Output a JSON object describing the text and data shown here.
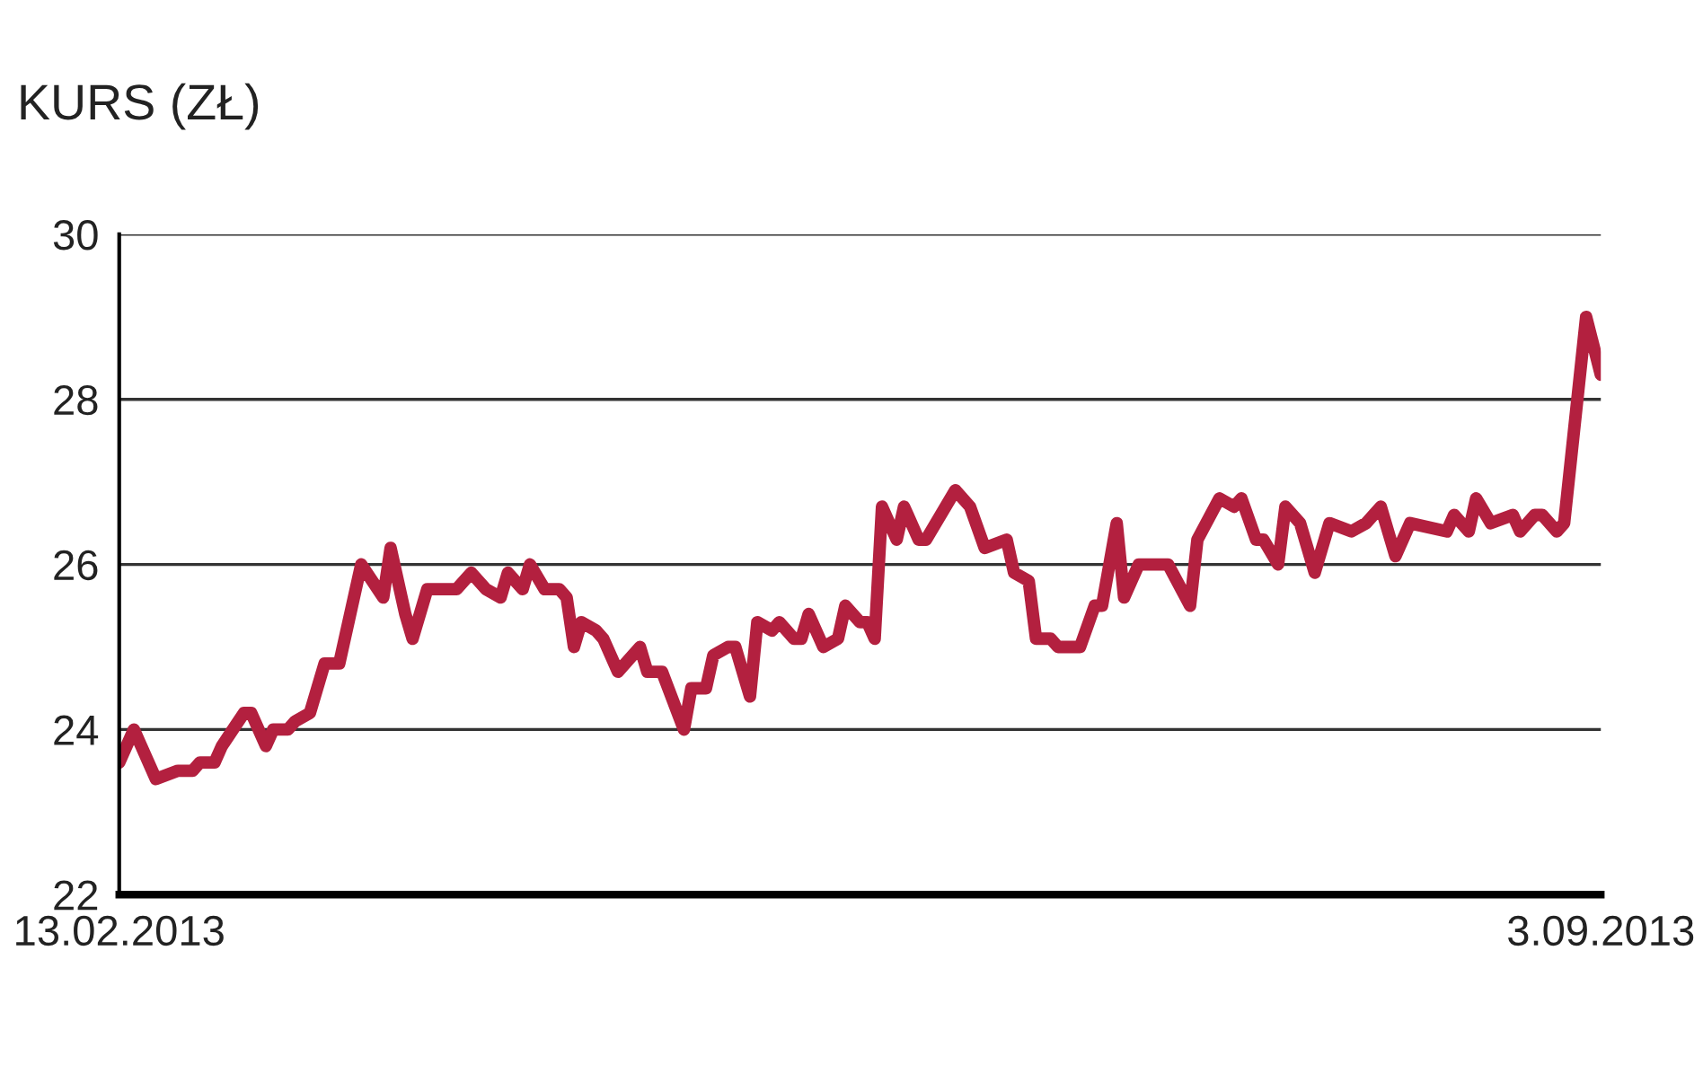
{
  "chart_data": {
    "type": "line",
    "subtitle": "KURS (ZŁ)",
    "x": [
      "2013-02-13",
      "2013-02-15",
      "2013-02-16",
      "2013-02-18",
      "2013-02-21",
      "2013-02-23",
      "2013-02-24",
      "2013-02-26",
      "2013-02-27",
      "2013-03-02",
      "2013-03-03",
      "2013-03-05",
      "2013-03-06",
      "2013-03-08",
      "2013-03-09",
      "2013-03-11",
      "2013-03-13",
      "2013-03-15",
      "2013-03-18",
      "2013-03-21",
      "2013-03-22",
      "2013-03-24",
      "2013-03-25",
      "2013-03-27",
      "2013-03-28",
      "2013-03-31",
      "2013-04-02",
      "2013-04-04",
      "2013-04-06",
      "2013-04-07",
      "2013-04-09",
      "2013-04-10",
      "2013-04-12",
      "2013-04-14",
      "2013-04-15",
      "2013-04-16",
      "2013-04-17",
      "2013-04-19",
      "2013-04-20",
      "2013-04-22",
      "2013-04-25",
      "2013-04-26",
      "2013-04-28",
      "2013-05-01",
      "2013-05-02",
      "2013-05-04",
      "2013-05-05",
      "2013-05-07",
      "2013-05-08",
      "2013-05-10",
      "2013-05-11",
      "2013-05-13",
      "2013-05-14",
      "2013-05-16",
      "2013-05-17",
      "2013-05-18",
      "2013-05-20",
      "2013-05-22",
      "2013-05-23",
      "2013-05-25",
      "2013-05-26",
      "2013-05-27",
      "2013-05-28",
      "2013-05-30",
      "2013-05-31",
      "2013-06-02",
      "2013-06-03",
      "2013-06-07",
      "2013-06-09",
      "2013-06-11",
      "2013-06-14",
      "2013-06-15",
      "2013-06-17",
      "2013-06-18",
      "2013-06-20",
      "2013-06-21",
      "2013-06-24",
      "2013-06-26",
      "2013-06-27",
      "2013-06-29",
      "2013-06-30",
      "2013-07-02",
      "2013-07-06",
      "2013-07-09",
      "2013-07-10",
      "2013-07-13",
      "2013-07-15",
      "2013-07-16",
      "2013-07-18",
      "2013-07-19",
      "2013-07-21",
      "2013-07-22",
      "2013-07-24",
      "2013-07-26",
      "2013-07-28",
      "2013-07-31",
      "2013-08-02",
      "2013-08-04",
      "2013-08-06",
      "2013-08-08",
      "2013-08-13",
      "2013-08-14",
      "2013-08-16",
      "2013-08-17",
      "2013-08-19",
      "2013-08-22",
      "2013-08-23",
      "2013-08-25",
      "2013-08-26",
      "2013-08-28",
      "2013-08-29",
      "2013-09-01",
      "2013-09-03"
    ],
    "series": [
      {
        "color": "#b3203f",
        "values": [
          23.6,
          24.0,
          23.8,
          23.4,
          23.5,
          23.5,
          23.6,
          23.6,
          23.8,
          24.2,
          24.2,
          23.8,
          24.0,
          24.0,
          24.1,
          24.2,
          24.8,
          24.8,
          26.0,
          25.6,
          26.2,
          25.4,
          25.1,
          25.7,
          25.7,
          25.7,
          25.9,
          25.7,
          25.6,
          25.9,
          25.7,
          26.0,
          25.7,
          25.7,
          25.6,
          25.0,
          25.3,
          25.2,
          25.1,
          24.7,
          25.0,
          24.7,
          24.7,
          24.0,
          24.5,
          24.5,
          24.9,
          25.0,
          25.0,
          24.4,
          25.3,
          25.2,
          25.3,
          25.1,
          25.1,
          25.4,
          25.0,
          25.1,
          25.5,
          25.3,
          25.3,
          25.1,
          26.7,
          26.3,
          26.7,
          26.3,
          26.3,
          26.9,
          26.7,
          26.2,
          26.3,
          25.9,
          25.8,
          25.1,
          25.1,
          25.0,
          25.0,
          25.5,
          25.5,
          26.5,
          25.6,
          26.0,
          26.0,
          25.5,
          26.3,
          26.8,
          26.7,
          26.8,
          26.3,
          26.3,
          26.0,
          26.7,
          26.5,
          25.9,
          26.5,
          26.4,
          26.5,
          26.7,
          26.1,
          26.5,
          26.4,
          26.6,
          26.4,
          26.8,
          26.5,
          26.6,
          26.4,
          26.6,
          26.6,
          26.4,
          26.5,
          29.0,
          28.3
        ]
      }
    ],
    "ylim": [
      22,
      30
    ],
    "yticks": [
      22,
      24,
      26,
      28,
      30
    ],
    "xlim": [
      "2013-02-13",
      "2013-09-03"
    ],
    "xticks": [
      {
        "value": "2013-02-13",
        "label": "13.02.2013"
      },
      {
        "value": "2013-09-03",
        "label": "3.09.2013"
      }
    ],
    "grid": "y",
    "legend": false,
    "marker": "none",
    "line_style": "solid"
  }
}
